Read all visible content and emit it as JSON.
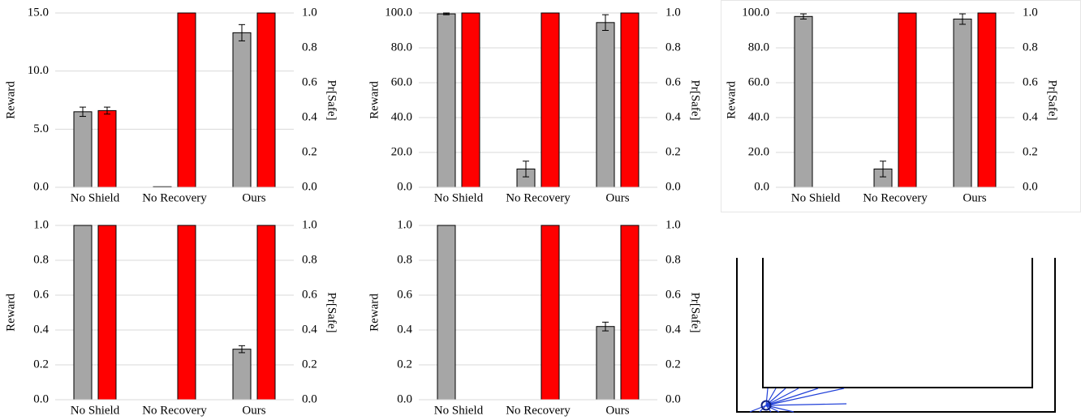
{
  "chart_data": [
    {
      "type": "bar",
      "categories": [
        "No Shield",
        "No Recovery",
        "Ours"
      ],
      "ylabel": "Reward",
      "y2label": "Pr[Safe]",
      "ylim": [
        0,
        15
      ],
      "yticks": [
        {
          "value": 0,
          "label": "0.0"
        },
        {
          "value": 5,
          "label": "5.0"
        },
        {
          "value": 10,
          "label": "10.0"
        },
        {
          "value": 15,
          "label": "15.0"
        }
      ],
      "y2lim": [
        0,
        1
      ],
      "y2ticks": [
        {
          "value": 0,
          "label": "0.0"
        },
        0.2,
        0.4,
        0.6,
        0.8,
        {
          "value": 1,
          "label": "1.0"
        }
      ],
      "grid": true,
      "series": [
        {
          "color": "#a6a6a6",
          "values": [
            6.5,
            0.05,
            13.3
          ],
          "errors": [
            0.4,
            0,
            0.7
          ]
        },
        {
          "color": "#ff0000",
          "axis": "y2",
          "values": [
            0.44,
            1.0,
            1.0
          ],
          "errors": [
            0.02,
            0,
            0
          ]
        }
      ]
    },
    {
      "type": "bar",
      "categories": [
        "No Shield",
        "No Recovery",
        "Ours"
      ],
      "ylabel": "Reward",
      "y2label": "Pr[Safe]",
      "ylim": [
        0,
        100
      ],
      "yticks": [
        {
          "value": 0,
          "label": "0.0"
        },
        {
          "value": 20,
          "label": "20.0"
        },
        {
          "value": 40,
          "label": "40.0"
        },
        {
          "value": 60,
          "label": "60.0"
        },
        {
          "value": 80,
          "label": "80.0"
        },
        {
          "value": 100,
          "label": "100.0"
        }
      ],
      "y2lim": [
        0,
        1
      ],
      "y2ticks": [
        {
          "value": 0,
          "label": "0.0"
        },
        0.2,
        0.4,
        0.6,
        0.8,
        {
          "value": 1,
          "label": "1.0"
        }
      ],
      "grid": true,
      "series": [
        {
          "color": "#a6a6a6",
          "values": [
            99.5,
            10.5,
            94.5
          ],
          "errors": [
            0.5,
            4.5,
            4.5
          ]
        },
        {
          "color": "#ff0000",
          "axis": "y2",
          "values": [
            1.0,
            1.0,
            1.0
          ],
          "errors": [
            0,
            0,
            0
          ]
        }
      ]
    },
    {
      "type": "bar",
      "categories": [
        "No Shield",
        "No Recovery",
        "Ours"
      ],
      "ylabel": "Reward",
      "y2label": "Pr[Safe]",
      "ylim": [
        0,
        100
      ],
      "yticks": [
        {
          "value": 0,
          "label": "0.0"
        },
        {
          "value": 20,
          "label": "20.0"
        },
        {
          "value": 40,
          "label": "40.0"
        },
        {
          "value": 60,
          "label": "60.0"
        },
        {
          "value": 80,
          "label": "80.0"
        },
        {
          "value": 100,
          "label": "100.0"
        }
      ],
      "y2lim": [
        0,
        1
      ],
      "y2ticks": [
        {
          "value": 0,
          "label": "0.0"
        },
        0.2,
        0.4,
        0.6,
        0.8,
        {
          "value": 1,
          "label": "1.0"
        }
      ],
      "grid": true,
      "series": [
        {
          "color": "#a6a6a6",
          "values": [
            98,
            10.5,
            96.5
          ],
          "errors": [
            1.5,
            4.5,
            3
          ]
        },
        {
          "color": "#ff0000",
          "axis": "y2",
          "values": [
            0,
            1.0,
            1.0
          ],
          "errors": [
            0,
            0,
            0
          ]
        }
      ]
    },
    {
      "type": "bar",
      "categories": [
        "No Shield",
        "No Recovery",
        "Ours"
      ],
      "ylabel": "Reward",
      "y2label": "Pr[Safe]",
      "ylim": [
        0,
        1
      ],
      "yticks": [
        {
          "value": 0,
          "label": "0.0"
        },
        0.2,
        0.4,
        0.6,
        0.8,
        {
          "value": 1,
          "label": "1.0"
        }
      ],
      "y2lim": [
        0,
        1
      ],
      "y2ticks": [
        {
          "value": 0,
          "label": "0.0"
        },
        0.2,
        0.4,
        0.6,
        0.8,
        {
          "value": 1,
          "label": "1.0"
        }
      ],
      "grid": true,
      "series": [
        {
          "color": "#a6a6a6",
          "values": [
            1.0,
            0,
            0.29
          ],
          "errors": [
            0,
            0,
            0.02
          ]
        },
        {
          "color": "#ff0000",
          "axis": "y2",
          "values": [
            1.0,
            1.0,
            1.0
          ],
          "errors": [
            0,
            0,
            0
          ]
        }
      ]
    },
    {
      "type": "bar",
      "categories": [
        "No Shield",
        "No Recovery",
        "Ours"
      ],
      "ylabel": "Reward",
      "y2label": "Pr[Safe]",
      "ylim": [
        0,
        1
      ],
      "yticks": [
        {
          "value": 0,
          "label": "0.0"
        },
        0.2,
        0.4,
        0.6,
        0.8,
        {
          "value": 1,
          "label": "1.0"
        }
      ],
      "y2lim": [
        0,
        1
      ],
      "y2ticks": [
        {
          "value": 0,
          "label": "0.0"
        },
        0.2,
        0.4,
        0.6,
        0.8,
        {
          "value": 1,
          "label": "1.0"
        }
      ],
      "grid": true,
      "series": [
        {
          "color": "#a6a6a6",
          "values": [
            1.0,
            0,
            0.42
          ],
          "errors": [
            0,
            0,
            0.025
          ]
        },
        {
          "color": "#ff0000",
          "axis": "y2",
          "values": [
            0,
            1.0,
            1.0
          ],
          "errors": [
            0,
            0,
            0
          ]
        }
      ]
    }
  ]
}
